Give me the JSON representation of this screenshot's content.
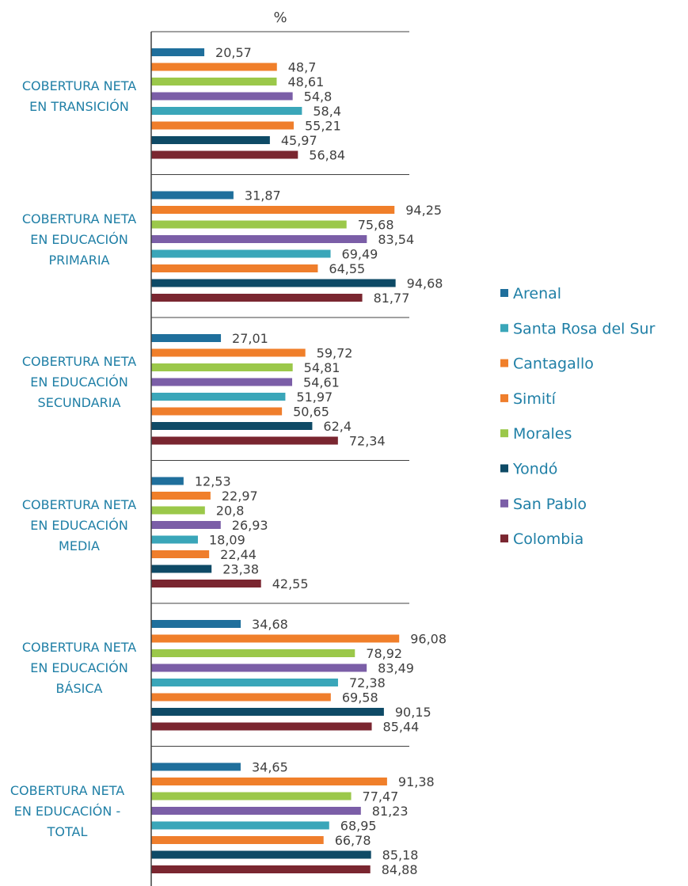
{
  "chart_data": {
    "type": "hbar",
    "x_label": "%",
    "categories": [
      "COBERTURA NETA EN TRANSICIÓN",
      "COBERTURA NETA EN EDUCACIÓN PRIMARIA",
      "COBERTURA NETA EN EDUCACIÓN SECUNDARIA",
      "COBERTURA NETA EN EDUCACIÓN MEDIA",
      "COBERTURA NETA EN EDUCACIÓN BÁSICA",
      "COBERTURA NETA EN EDUCACIÓN - TOTAL"
    ],
    "xlim": [
      0,
      100
    ],
    "series": [
      {
        "name": "Arenal",
        "color": "#1f6f9c",
        "values": [
          20.57,
          31.87,
          27.01,
          12.53,
          34.68,
          34.65
        ],
        "value_labels": [
          "20,57",
          "31,87",
          "27,01",
          "12,53",
          "34,68",
          "34,65"
        ]
      },
      {
        "name": "Santa Rosa del Sur",
        "color": "#3aa6b9",
        "values": [
          58.4,
          69.49,
          51.97,
          18.09,
          72.38,
          68.95
        ],
        "value_labels": [
          "58,4",
          "69,49",
          "51,97",
          "18,09",
          "72,38",
          "68,95"
        ]
      },
      {
        "name": "Cantagallo",
        "color": "#f07f2a",
        "values": [
          48.7,
          94.25,
          59.72,
          22.97,
          96.08,
          91.38
        ],
        "value_labels": [
          "48,7",
          "94,25",
          "59,72",
          "22,97",
          "96,08",
          "91,38"
        ]
      },
      {
        "name": "Simití",
        "color": "#ef7e2c",
        "values": [
          55.21,
          64.55,
          50.65,
          22.44,
          69.58,
          66.78
        ],
        "value_labels": [
          "55,21",
          "64,55",
          "50,65",
          "22,44",
          "69,58",
          "66,78"
        ]
      },
      {
        "name": "Morales",
        "color": "#9bc84a",
        "values": [
          48.61,
          75.68,
          54.81,
          20.8,
          78.92,
          77.47
        ],
        "value_labels": [
          "48,61",
          "75,68",
          "54,81",
          "20,8",
          "78,92",
          "77,47"
        ]
      },
      {
        "name": "Yondó",
        "color": "#0e4a66",
        "values": [
          45.97,
          94.68,
          62.4,
          23.38,
          90.15,
          85.18
        ],
        "value_labels": [
          "45,97",
          "94,68",
          "62,4",
          "23,38",
          "90,15",
          "85,18"
        ]
      },
      {
        "name": "San Pablo",
        "color": "#7b5ea7",
        "values": [
          54.8,
          83.54,
          54.61,
          26.93,
          83.49,
          81.23
        ],
        "value_labels": [
          "54,8",
          "83,54",
          "54,61",
          "26,93",
          "83,49",
          "81,23"
        ]
      },
      {
        "name": "Colombia",
        "color": "#7a2630",
        "values": [
          56.84,
          81.77,
          72.34,
          42.55,
          85.44,
          84.88
        ],
        "value_labels": [
          "56,84",
          "81,77",
          "72,34",
          "42,55",
          "85,44",
          "84,88"
        ]
      }
    ]
  }
}
